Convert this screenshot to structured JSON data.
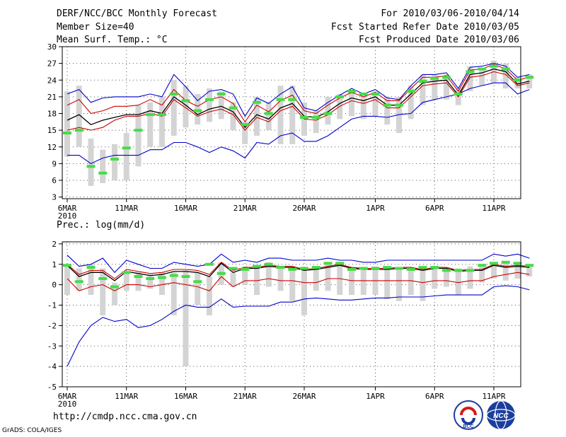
{
  "header": {
    "title": "DERF/NCC/BCC Monthly Forecast",
    "member_size": "Member Size=40",
    "variable": "Mean Surf. Temp.: °C",
    "period": "For 2010/03/06-2010/04/14",
    "refer_date": "Fcst Started Refer Date 2010/03/05",
    "produced_date": "Fcst Produced Date 2010/03/06"
  },
  "footer": {
    "url": "http://cmdp.ncc.cma.gov.cn",
    "credit": "GrADS: COLA/IGES",
    "logo_bcc": "BCC",
    "logo_ncc": "NCC"
  },
  "colors": {
    "box": "#d4d4d4",
    "median": "#44dd44",
    "mean": "#000000",
    "bound_inner": "#cc0000",
    "bound_outer": "#0000cc",
    "grid": "#555555"
  },
  "chart_data": [
    {
      "type": "box",
      "title": "Mean Surf. Temp.: °C",
      "ylim": [
        2.7,
        30
      ],
      "yticks": [
        3,
        6,
        9,
        12,
        15,
        18,
        21,
        24,
        27,
        30
      ],
      "xticks": [
        {
          "day": 0,
          "label": "6MAR",
          "sublabel": "2010"
        },
        {
          "day": 5,
          "label": "11MAR"
        },
        {
          "day": 10,
          "label": "16MAR"
        },
        {
          "day": 15,
          "label": "21MAR"
        },
        {
          "day": 20,
          "label": "26MAR"
        },
        {
          "day": 26,
          "label": "1APR"
        },
        {
          "day": 31,
          "label": "6APR"
        },
        {
          "day": 36,
          "label": "11APR"
        }
      ],
      "series": [
        {
          "name": "mean",
          "values": [
            16.8,
            17.8,
            16.0,
            16.8,
            17.3,
            17.8,
            17.8,
            18.5,
            18.0,
            21.0,
            19.5,
            17.8,
            18.8,
            19.3,
            18.3,
            15.5,
            17.8,
            17.0,
            19.0,
            19.8,
            17.5,
            17.3,
            18.3,
            19.8,
            20.8,
            20.3,
            21.0,
            19.5,
            19.5,
            21.5,
            23.5,
            23.8,
            24.0,
            21.3,
            25.0,
            25.3,
            26.0,
            25.5,
            23.3,
            23.8
          ]
        },
        {
          "name": "upper_inner",
          "values": [
            19.5,
            20.5,
            18.0,
            18.5,
            19.3,
            19.3,
            19.5,
            20.5,
            19.5,
            22.3,
            20.3,
            19.3,
            20.5,
            21.0,
            19.8,
            16.5,
            19.5,
            18.3,
            20.3,
            21.3,
            18.5,
            18.0,
            19.5,
            20.8,
            21.8,
            21.0,
            21.8,
            20.3,
            20.3,
            22.5,
            24.5,
            24.5,
            24.8,
            22.0,
            25.8,
            26.0,
            26.8,
            26.0,
            24.0,
            24.5
          ]
        },
        {
          "name": "lower_inner",
          "values": [
            15.0,
            15.5,
            15.0,
            15.5,
            16.8,
            17.5,
            17.5,
            18.0,
            17.5,
            20.5,
            19.0,
            17.5,
            18.3,
            18.8,
            17.8,
            15.0,
            17.3,
            16.5,
            18.5,
            19.3,
            17.0,
            16.8,
            17.8,
            19.3,
            20.3,
            19.8,
            20.5,
            19.0,
            19.0,
            21.0,
            23.0,
            23.3,
            23.5,
            21.0,
            24.5,
            24.8,
            25.5,
            25.0,
            23.0,
            23.5
          ]
        },
        {
          "name": "upper_outer",
          "values": [
            21.5,
            22.3,
            20.0,
            20.8,
            21.0,
            21.0,
            21.0,
            21.5,
            21.0,
            25.0,
            22.8,
            20.3,
            22.0,
            22.3,
            21.5,
            17.5,
            20.8,
            19.8,
            21.5,
            22.8,
            19.0,
            18.5,
            20.0,
            21.3,
            22.5,
            21.5,
            22.3,
            20.8,
            20.5,
            23.0,
            25.0,
            25.0,
            25.3,
            22.5,
            26.3,
            26.5,
            27.0,
            26.5,
            24.5,
            25.0
          ]
        },
        {
          "name": "lower_outer",
          "values": [
            10.5,
            10.5,
            9.0,
            10.0,
            10.5,
            10.5,
            10.5,
            11.5,
            11.5,
            12.8,
            12.8,
            12.0,
            11.0,
            12.0,
            11.3,
            10.0,
            12.8,
            12.5,
            14.0,
            14.5,
            13.0,
            13.0,
            14.0,
            15.5,
            17.0,
            17.5,
            17.5,
            17.3,
            17.8,
            18.0,
            20.0,
            20.5,
            21.0,
            21.5,
            22.5,
            23.0,
            23.5,
            23.5,
            21.5,
            22.3
          ]
        },
        {
          "name": "median",
          "values": [
            14.5,
            15.0,
            8.5,
            7.3,
            9.8,
            11.8,
            15.0,
            17.8,
            17.8,
            21.5,
            20.3,
            18.5,
            20.5,
            21.5,
            19.0,
            16.0,
            20.0,
            18.0,
            20.5,
            20.5,
            17.3,
            17.3,
            18.0,
            21.0,
            22.0,
            21.5,
            21.5,
            19.5,
            19.5,
            22.0,
            23.8,
            24.3,
            24.5,
            21.5,
            25.5,
            26.0,
            26.5,
            26.0,
            24.0,
            24.5
          ]
        }
      ],
      "boxes": [
        [
          10.3,
          22.0
        ],
        [
          12.0,
          23.0
        ],
        [
          5.0,
          13.5
        ],
        [
          5.5,
          11.5
        ],
        [
          6.0,
          12.5
        ],
        [
          6.0,
          14.5
        ],
        [
          8.5,
          19.5
        ],
        [
          12.0,
          20.0
        ],
        [
          12.0,
          21.0
        ],
        [
          14.0,
          24.0
        ],
        [
          15.5,
          23.0
        ],
        [
          16.0,
          21.5
        ],
        [
          16.5,
          22.5
        ],
        [
          17.0,
          22.0
        ],
        [
          15.0,
          20.0
        ],
        [
          12.5,
          16.5
        ],
        [
          14.0,
          21.0
        ],
        [
          15.0,
          20.0
        ],
        [
          12.5,
          23.0
        ],
        [
          12.5,
          23.0
        ],
        [
          14.0,
          20.0
        ],
        [
          14.5,
          18.5
        ],
        [
          16.0,
          21.0
        ],
        [
          17.0,
          21.5
        ],
        [
          17.5,
          22.0
        ],
        [
          17.0,
          21.5
        ],
        [
          17.5,
          22.0
        ],
        [
          16.0,
          21.0
        ],
        [
          14.5,
          21.0
        ],
        [
          17.0,
          23.0
        ],
        [
          19.5,
          25.0
        ],
        [
          20.5,
          25.0
        ],
        [
          20.5,
          25.0
        ],
        [
          19.5,
          22.5
        ],
        [
          22.0,
          26.5
        ],
        [
          23.0,
          26.0
        ],
        [
          23.5,
          27.5
        ],
        [
          22.5,
          27.0
        ],
        [
          22.5,
          24.5
        ],
        [
          22.5,
          25.0
        ]
      ]
    },
    {
      "type": "box",
      "title": "Prec.: log(mm/d)",
      "ylim": [
        -5,
        2.1
      ],
      "yticks": [
        -5,
        -4,
        -3,
        -2,
        -1,
        0,
        1,
        2
      ],
      "xticks": [
        {
          "day": 0,
          "label": "6MAR",
          "sublabel": "2010"
        },
        {
          "day": 5,
          "label": "11MAR"
        },
        {
          "day": 10,
          "label": "16MAR"
        },
        {
          "day": 15,
          "label": "21MAR"
        },
        {
          "day": 20,
          "label": "26MAR"
        },
        {
          "day": 26,
          "label": "1APR"
        },
        {
          "day": 31,
          "label": "6APR"
        },
        {
          "day": 36,
          "label": "11APR"
        }
      ],
      "series": [
        {
          "name": "mean",
          "values": [
            0.95,
            0.4,
            0.6,
            0.6,
            0.2,
            0.65,
            0.55,
            0.45,
            0.5,
            0.65,
            0.65,
            0.6,
            0.4,
            1.05,
            0.6,
            0.8,
            0.8,
            0.9,
            0.85,
            0.85,
            0.7,
            0.75,
            0.85,
            0.95,
            0.8,
            0.75,
            0.75,
            0.75,
            0.8,
            0.8,
            0.7,
            0.8,
            0.8,
            0.65,
            0.7,
            0.7,
            0.95,
            0.85,
            0.9,
            0.85
          ]
        },
        {
          "name": "upper_inner",
          "values": [
            1.0,
            0.5,
            0.7,
            0.7,
            0.3,
            0.75,
            0.65,
            0.55,
            0.6,
            0.75,
            0.75,
            0.7,
            0.5,
            1.1,
            0.7,
            0.85,
            0.85,
            0.95,
            0.9,
            0.9,
            0.75,
            0.8,
            0.9,
            1.0,
            0.85,
            0.8,
            0.8,
            0.8,
            0.85,
            0.85,
            0.75,
            0.85,
            0.85,
            0.7,
            0.75,
            0.75,
            1.0,
            0.9,
            0.95,
            0.9
          ]
        },
        {
          "name": "lower_inner",
          "values": [
            0.3,
            -0.3,
            -0.1,
            0.0,
            -0.3,
            0.0,
            0.0,
            -0.1,
            0.0,
            0.1,
            0.0,
            -0.1,
            -0.3,
            0.4,
            -0.1,
            0.2,
            0.2,
            0.3,
            0.2,
            0.2,
            0.1,
            0.1,
            0.3,
            0.3,
            0.2,
            0.2,
            0.2,
            0.2,
            0.2,
            0.2,
            0.1,
            0.2,
            0.2,
            0.1,
            0.2,
            0.2,
            0.4,
            0.5,
            0.6,
            0.5
          ]
        },
        {
          "name": "upper_outer",
          "values": [
            1.45,
            0.9,
            1.0,
            1.3,
            0.6,
            1.2,
            1.0,
            0.8,
            0.8,
            1.1,
            1.0,
            0.9,
            1.0,
            1.5,
            1.1,
            1.2,
            1.1,
            1.3,
            1.3,
            1.2,
            1.2,
            1.2,
            1.3,
            1.2,
            1.2,
            1.1,
            1.1,
            1.2,
            1.2,
            1.2,
            1.2,
            1.2,
            1.2,
            1.2,
            1.2,
            1.2,
            1.5,
            1.4,
            1.5,
            1.3
          ]
        },
        {
          "name": "lower_outer",
          "values": [
            -4.0,
            -2.8,
            -2.0,
            -1.6,
            -1.8,
            -1.7,
            -2.1,
            -2.0,
            -1.7,
            -1.3,
            -1.0,
            -1.1,
            -1.1,
            -0.7,
            -1.1,
            -1.05,
            -1.05,
            -1.05,
            -0.85,
            -0.85,
            -0.7,
            -0.65,
            -0.7,
            -0.75,
            -0.75,
            -0.7,
            -0.65,
            -0.65,
            -0.6,
            -0.6,
            -0.6,
            -0.55,
            -0.5,
            -0.5,
            -0.5,
            -0.5,
            -0.1,
            -0.05,
            -0.1,
            -0.25
          ]
        },
        {
          "name": "median",
          "values": [
            0.95,
            0.15,
            0.85,
            0.3,
            -0.1,
            0.6,
            0.4,
            0.3,
            0.35,
            0.45,
            0.4,
            0.15,
            1.0,
            0.55,
            0.8,
            0.75,
            0.9,
            1.0,
            0.85,
            0.75,
            0.8,
            0.85,
            1.05,
            1.05,
            0.75,
            0.8,
            0.8,
            0.85,
            0.8,
            0.75,
            0.85,
            0.85,
            0.7,
            0.7,
            0.7,
            0.95,
            1.05,
            1.1,
            1.05,
            0.95
          ]
        }
      ],
      "boxes": [
        [
          -0.5,
          1.0
        ],
        [
          -0.3,
          0.8
        ],
        [
          -0.5,
          1.0
        ],
        [
          -1.5,
          0.8
        ],
        [
          -1.0,
          0.1
        ],
        [
          -0.3,
          0.6
        ],
        [
          -0.3,
          0.6
        ],
        [
          -0.2,
          0.5
        ],
        [
          -0.5,
          0.6
        ],
        [
          -1.5,
          0.6
        ],
        [
          -4.0,
          0.7
        ],
        [
          -1.0,
          0.6
        ],
        [
          -1.5,
          0.4
        ],
        [
          0.0,
          1.1
        ],
        [
          -0.1,
          0.6
        ],
        [
          0.0,
          0.9
        ],
        [
          -0.5,
          0.9
        ],
        [
          -0.1,
          1.1
        ],
        [
          -0.3,
          0.9
        ],
        [
          -0.8,
          0.7
        ],
        [
          -1.5,
          0.8
        ],
        [
          -0.3,
          0.9
        ],
        [
          -0.3,
          1.0
        ],
        [
          -0.5,
          1.0
        ],
        [
          -0.5,
          0.8
        ],
        [
          -0.5,
          0.8
        ],
        [
          -0.5,
          0.9
        ],
        [
          -0.7,
          0.8
        ],
        [
          -0.8,
          0.8
        ],
        [
          -0.5,
          0.8
        ],
        [
          -0.8,
          0.9
        ],
        [
          -0.2,
          0.8
        ],
        [
          -0.1,
          0.7
        ],
        [
          -0.5,
          0.8
        ],
        [
          -0.2,
          0.9
        ],
        [
          0.1,
          1.0
        ],
        [
          0.3,
          1.1
        ],
        [
          0.2,
          1.1
        ],
        [
          0.3,
          1.1
        ],
        [
          0.4,
          1.0
        ]
      ]
    }
  ]
}
